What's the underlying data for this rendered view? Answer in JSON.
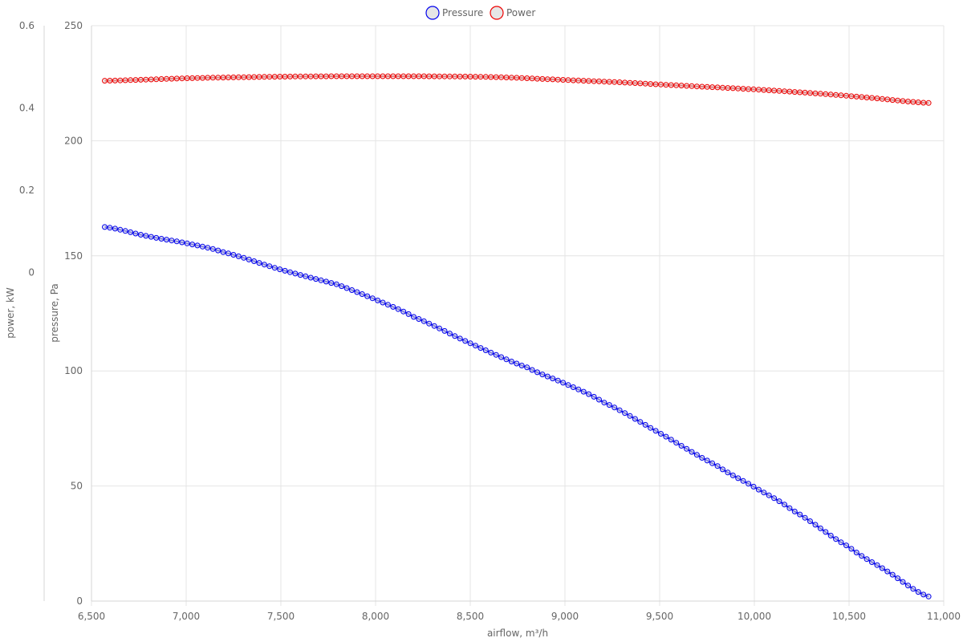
{
  "chart_data": {
    "type": "line",
    "title": "",
    "x": {
      "label": "airflow, m³/h",
      "range": [
        6500,
        11000
      ],
      "ticks": [
        6500,
        7000,
        7500,
        8000,
        8500,
        9000,
        9500,
        10000,
        10500,
        11000
      ],
      "tick_labels": [
        "6,500",
        "7,000",
        "7,500",
        "8,000",
        "8,500",
        "9,000",
        "9,500",
        "10,000",
        "10,500",
        "11,000"
      ]
    },
    "y_axes": [
      {
        "id": "pressure",
        "label": "pressure, Pa",
        "range": [
          0,
          250
        ],
        "ticks": [
          0,
          50,
          100,
          150,
          200,
          250
        ],
        "tick_labels": [
          "0",
          "50",
          "100",
          "150",
          "200",
          "250"
        ]
      },
      {
        "id": "power",
        "label": "power, kW",
        "range": [
          -0.8,
          0.6
        ],
        "ticks": [
          0,
          0.2,
          0.4,
          0.6
        ],
        "tick_labels": [
          "0",
          "0.2",
          "0.4",
          "0.6"
        ]
      }
    ],
    "grid": true,
    "legend": {
      "position": "top-center",
      "items": [
        "Pressure",
        "Power"
      ]
    },
    "series": [
      {
        "name": "Pressure",
        "axis": "pressure",
        "color": "#0000ee",
        "marker": "circle",
        "x": [
          6570,
          6800,
          7000,
          7200,
          7500,
          7800,
          8000,
          8200,
          8500,
          8800,
          9000,
          9200,
          9500,
          9800,
          10000,
          10200,
          10500,
          10700,
          10920
        ],
        "y": [
          162.5,
          158.5,
          155.5,
          151.5,
          144,
          137.5,
          131,
          123.5,
          112,
          101.5,
          94.5,
          86.5,
          73,
          59,
          49.5,
          39.5,
          23.5,
          13,
          2
        ]
      },
      {
        "name": "Power",
        "axis": "power",
        "color": "#ee0000",
        "marker": "circle",
        "x": [
          6570,
          6800,
          7000,
          7200,
          7500,
          7800,
          8000,
          8200,
          8500,
          8700,
          8900,
          9100,
          9300,
          9500,
          9700,
          10000,
          10300,
          10600,
          10920
        ],
        "y": [
          0.466,
          0.469,
          0.472,
          0.474,
          0.476,
          0.477,
          0.477,
          0.477,
          0.476,
          0.474,
          0.47,
          0.466,
          0.462,
          0.457,
          0.452,
          0.445,
          0.436,
          0.425,
          0.412
        ]
      }
    ]
  }
}
